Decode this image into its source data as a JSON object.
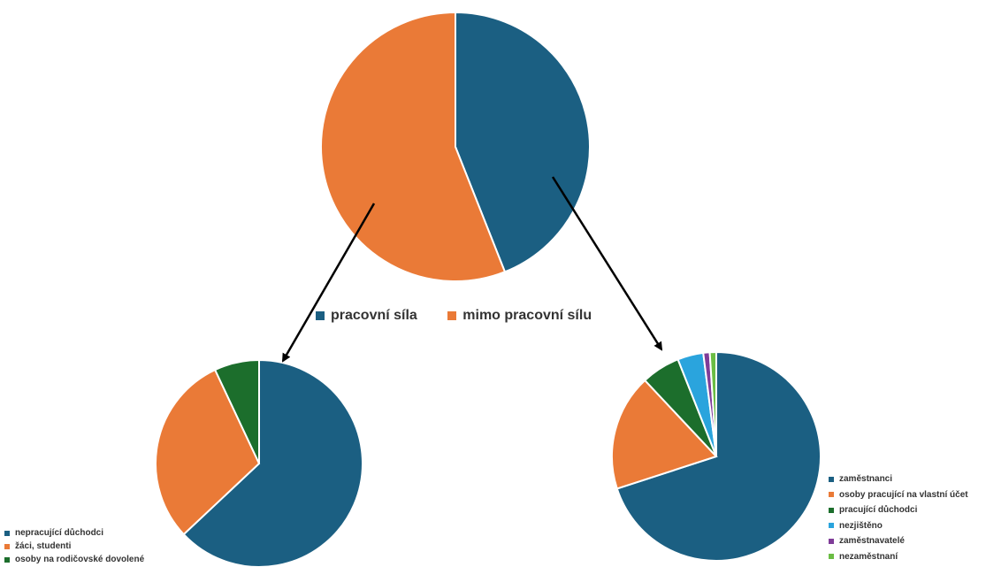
{
  "colors": {
    "blue": "#1b5f82",
    "orange": "#ea7a37",
    "green": "#1c6e2c",
    "light_blue": "#2aa4dd",
    "purple": "#7f3c98",
    "light_green": "#6bbd44",
    "arrow": "#000000"
  },
  "chart_data": [
    {
      "id": "top",
      "type": "pie",
      "slices": [
        {
          "label": "pracovní síla",
          "value": 44,
          "color": "#1b5f82"
        },
        {
          "label": "mimo pracovní sílu",
          "value": 56,
          "color": "#ea7a37"
        }
      ],
      "legend_position": "bottom"
    },
    {
      "id": "left",
      "type": "pie",
      "slices": [
        {
          "label": "nepracující důchodci",
          "value": 63,
          "color": "#1b5f82"
        },
        {
          "label": "žáci, studenti",
          "value": 30,
          "color": "#ea7a37"
        },
        {
          "label": "osoby na rodičovské dovolené",
          "value": 7,
          "color": "#1c6e2c"
        }
      ],
      "legend_position": "bottom-left"
    },
    {
      "id": "right",
      "type": "pie",
      "slices": [
        {
          "label": "zaměstnanci",
          "value": 70,
          "color": "#1b5f82"
        },
        {
          "label": "osoby pracující na vlastní účet",
          "value": 18,
          "color": "#ea7a37"
        },
        {
          "label": "pracující důchodci",
          "value": 6,
          "color": "#1c6e2c"
        },
        {
          "label": "nezjištěno",
          "value": 4,
          "color": "#2aa4dd"
        },
        {
          "label": "zaměstnavatelé",
          "value": 1,
          "color": "#7f3c98"
        },
        {
          "label": "nezaměstnaní",
          "value": 1,
          "color": "#6bbd44"
        }
      ],
      "legend_position": "right"
    }
  ]
}
